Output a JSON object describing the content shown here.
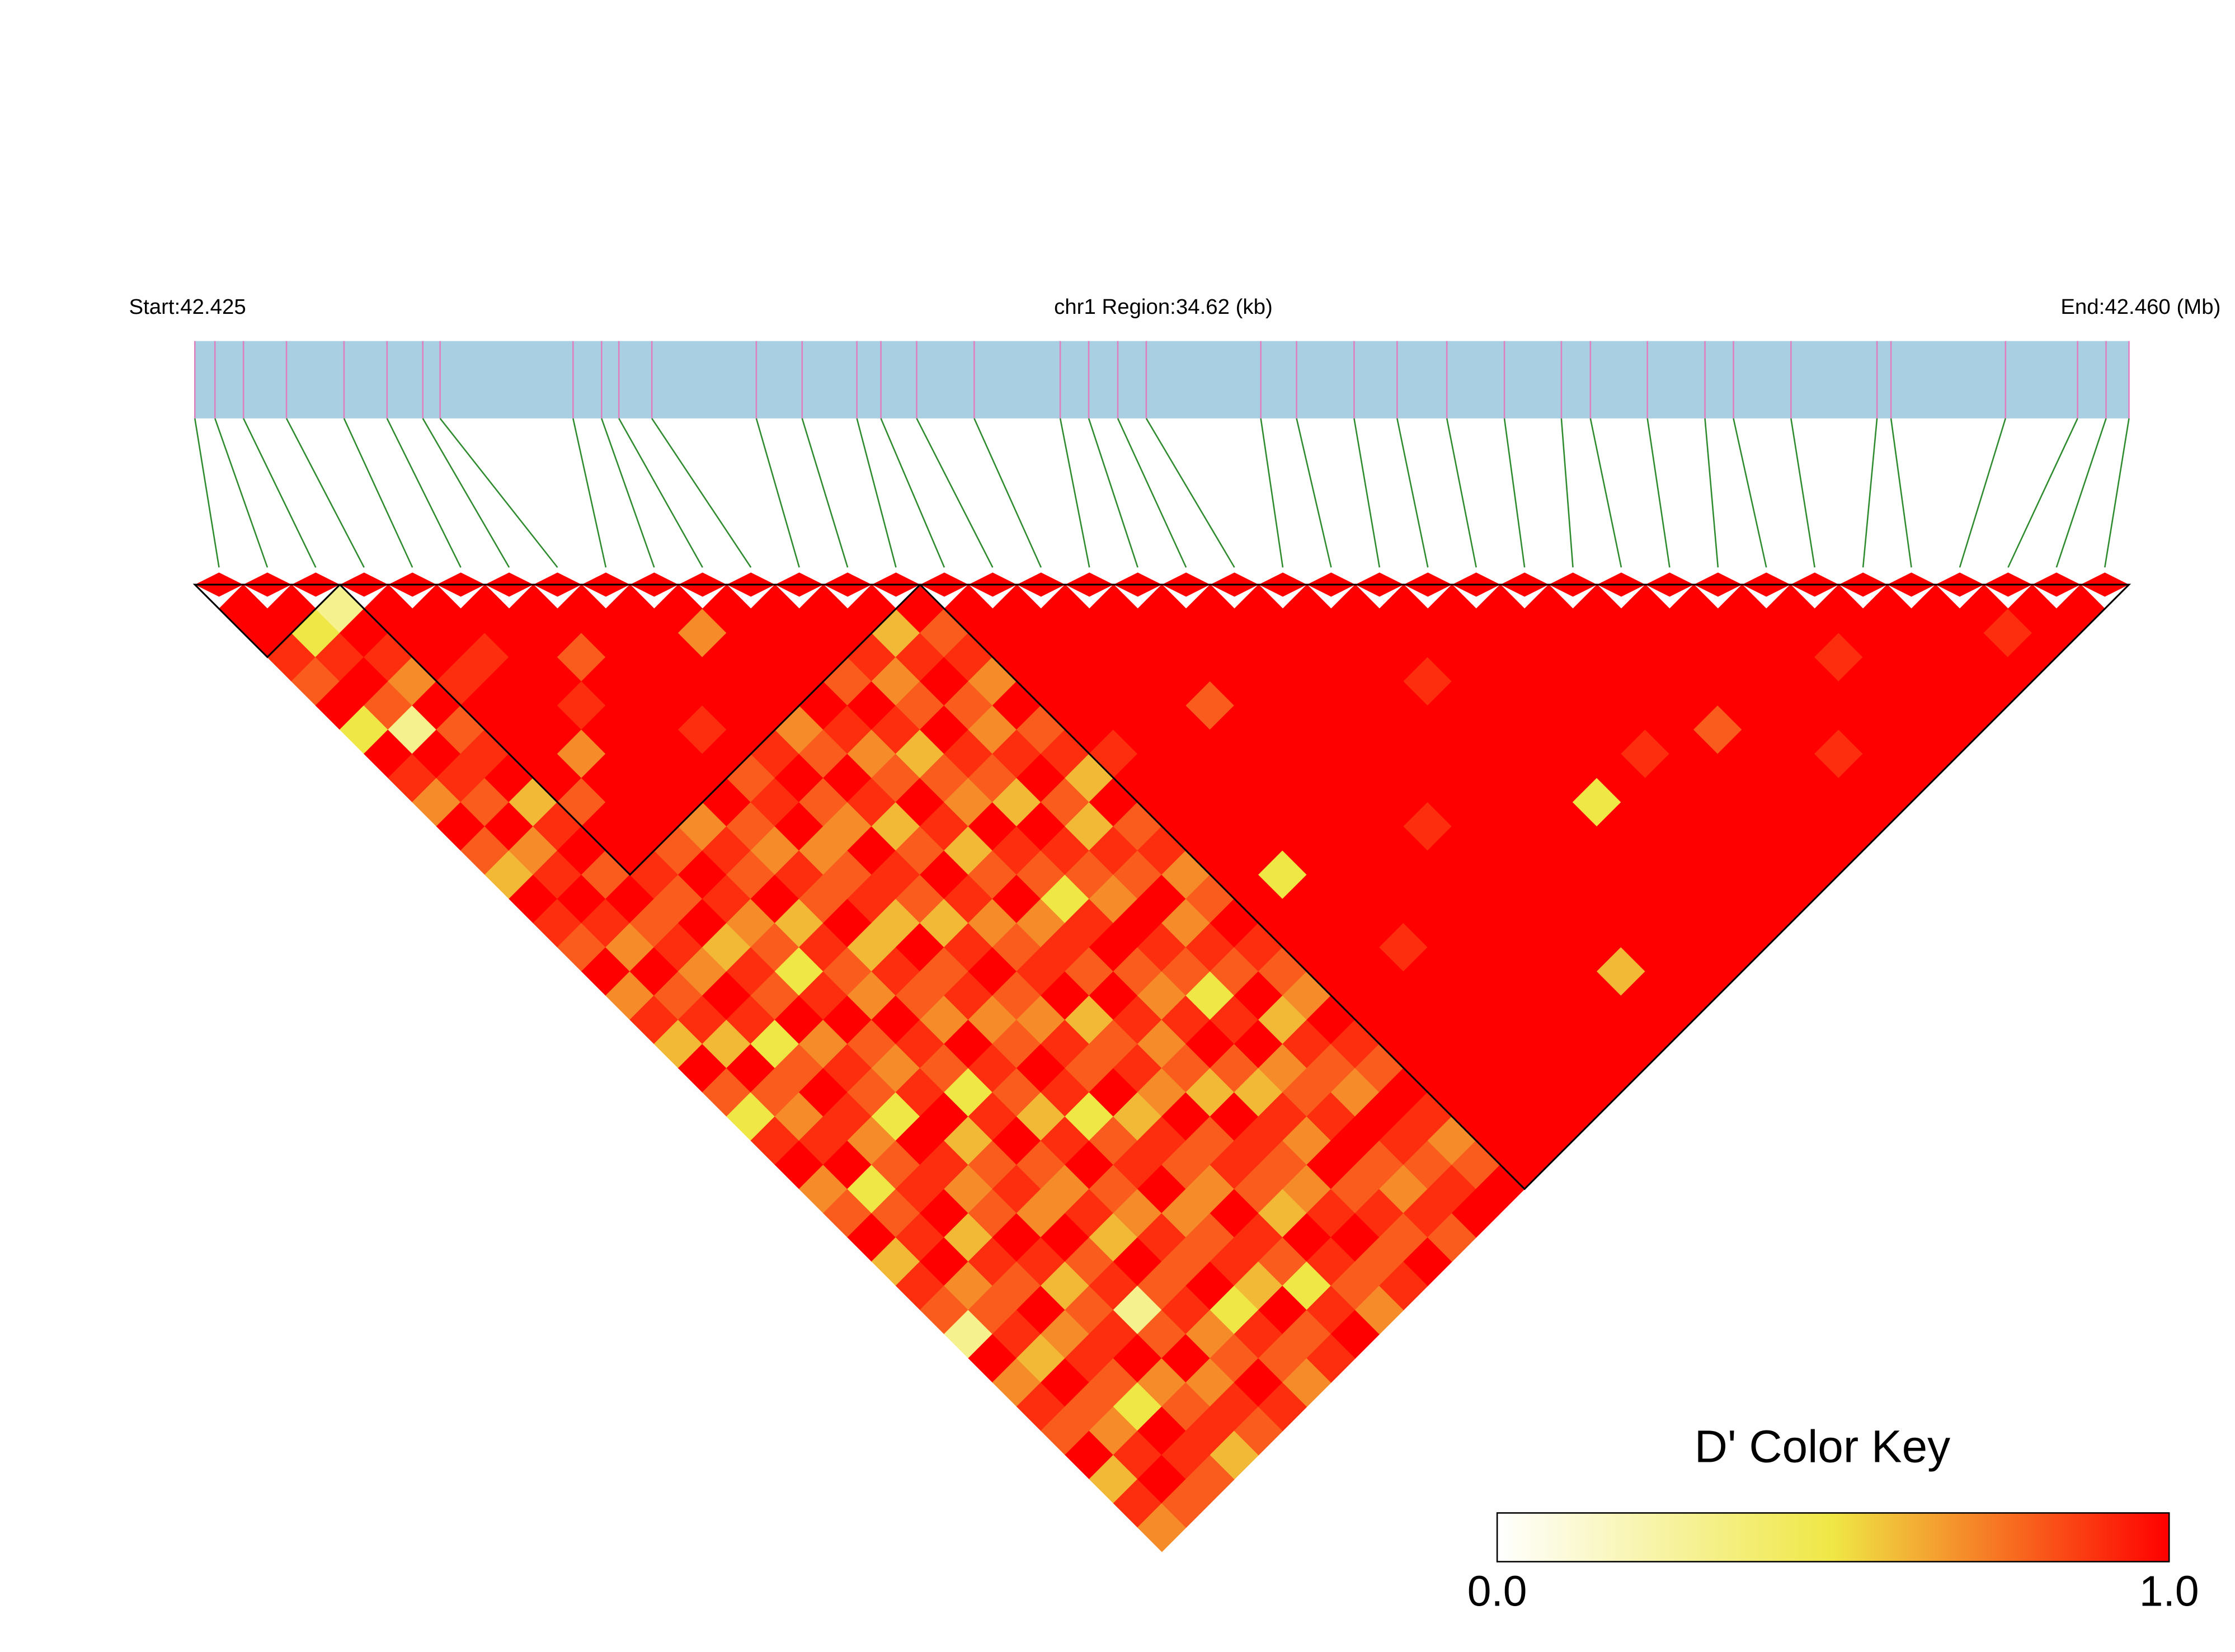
{
  "chart_data": {
    "type": "ldheatmap",
    "start_label": "Start:42.425",
    "region_label": "chr1 Region:34.62 (kb)",
    "end_label": "End:42.460 (Mb)",
    "xlim": [
      0,
      34.62
    ],
    "positions": [
      0,
      0.36,
      0.87,
      1.64,
      2.67,
      3.44,
      4.08,
      4.39,
      6.77,
      7.28,
      7.59,
      8.18,
      10.05,
      10.87,
      11.85,
      12.28,
      12.92,
      13.95,
      15.49,
      16.0,
      16.52,
      17.03,
      19.08,
      19.72,
      20.75,
      21.52,
      22.41,
      23.44,
      24.46,
      24.98,
      26.0,
      27.03,
      27.54,
      28.57,
      30.11,
      30.36,
      32.41,
      33.7,
      34.21,
      34.62
    ],
    "bar_color": "#a8cfe2",
    "marker_color": "#e07fc0",
    "connector_color": "#2e8b2e",
    "blocks": [
      [
        0,
        2
      ],
      [
        3,
        14
      ],
      [
        15,
        39
      ]
    ],
    "dprime": [
      [
        1,
        1,
        0.9,
        0.8,
        1,
        0.5,
        1,
        0.9,
        0.7,
        1,
        0.8,
        0.6,
        1,
        0.9,
        0.8,
        1,
        0.7,
        0.9,
        0.6,
        1,
        0.8,
        0.5,
        0.9,
        1,
        0.7,
        0.8,
        1,
        0.6,
        0.9,
        0.8,
        0.3,
        1,
        0.7,
        0.9,
        0.8,
        1,
        0.6,
        0.9,
        0.7
      ],
      [
        1,
        0.5,
        0.9,
        1,
        0.8,
        0.3,
        1,
        0.9,
        0.8,
        1,
        0.7,
        0.9,
        1,
        0.9,
        0.7,
        1,
        0.8,
        0.9,
        0.6,
        1,
        0.8,
        0.7,
        0.9,
        1,
        0.5,
        0.8,
        0.9,
        1,
        0.7,
        0.8,
        0.9,
        0.6,
        1,
        0.8,
        0.7,
        0.9,
        1,
        0.8
      ],
      [
        0.3,
        1,
        0.9,
        0.7,
        1,
        0.8,
        0.9,
        1,
        0.6,
        0.9,
        1,
        0.8,
        1,
        0.8,
        0.9,
        0.7,
        1,
        0.9,
        0.5,
        0.8,
        1,
        0.9,
        0.7,
        0.8,
        0.9,
        1,
        0.6,
        0.9,
        0.8,
        1,
        0.7,
        0.9,
        0.8,
        0.5,
        1,
        0.9,
        0.8
      ],
      [
        1,
        1,
        1,
        0.9,
        1,
        1,
        1,
        1,
        0.8,
        1,
        1,
        0.9,
        0.8,
        1,
        0.6,
        0.9,
        0.8,
        1,
        0.7,
        0.9,
        0.8,
        0.5,
        1,
        0.9,
        0.7,
        0.8,
        1,
        0.9,
        0.6,
        0.8,
        0.9,
        1,
        0.7,
        0.8,
        0.9,
        0.6
      ],
      [
        1,
        1,
        0.9,
        1,
        1,
        1,
        0.7,
        1,
        1,
        1,
        0.8,
        1,
        0.9,
        0.7,
        0.8,
        0.5,
        0.9,
        1,
        0.8,
        0.7,
        0.9,
        1,
        0.6,
        0.8,
        0.9,
        0.7,
        1,
        0.8,
        0.9,
        0.3,
        0.8,
        1,
        0.7,
        0.9,
        0.8
      ],
      [
        1,
        1,
        1,
        1,
        0.9,
        1,
        1,
        1,
        1,
        0.7,
        0.9,
        0.8,
        1,
        0.6,
        0.9,
        0.8,
        0.7,
        1,
        0.9,
        0.8,
        0.5,
        0.9,
        1,
        0.8,
        0.7,
        0.9,
        0.6,
        1,
        0.8,
        0.9,
        0.7,
        0.8,
        1,
        0.9
      ],
      [
        1,
        1,
        0.8,
        1,
        1,
        1,
        1,
        1,
        1,
        0.8,
        0.7,
        0.9,
        0.8,
        1,
        0.6,
        0.9,
        0.8,
        0.7,
        1,
        0.9,
        0.8,
        0.6,
        0.9,
        1,
        0.8,
        0.7,
        0.9,
        0.8,
        1,
        0.5,
        0.9,
        0.8,
        0.7
      ],
      [
        1,
        1,
        1,
        1,
        1,
        0.9,
        1,
        0.8,
        0.9,
        1,
        0.7,
        0.8,
        0.9,
        0.6,
        1,
        0.8,
        0.9,
        0.7,
        0.8,
        1,
        0.9,
        0.5,
        0.8,
        0.9,
        1,
        0.7,
        0.8,
        0.9,
        0.6,
        1,
        0.8,
        0.9
      ],
      [
        1,
        1,
        1,
        1,
        1,
        1,
        0.9,
        1,
        0.8,
        0.7,
        1,
        0.9,
        0.8,
        0.6,
        0.9,
        1,
        0.8,
        0.7,
        0.9,
        0.8,
        1,
        0.6,
        0.9,
        0.8,
        0.7,
        1,
        0.9,
        0.8,
        0.5,
        0.9,
        1
      ],
      [
        1,
        0.7,
        1,
        1,
        1,
        0.7,
        0.8,
        1,
        0.9,
        0.6,
        0.8,
        1,
        0.9,
        0.7,
        0.8,
        0.9,
        1,
        0.6,
        0.8,
        0.9,
        0.7,
        1,
        0.8,
        0.9,
        0.8,
        0.6,
        1,
        0.9,
        0.8,
        0.7
      ],
      [
        1,
        1,
        1,
        1,
        1,
        0.9,
        0.7,
        0.8,
        1,
        0.9,
        0.6,
        0.8,
        1,
        0.7,
        0.9,
        0.8,
        1,
        0.9,
        0.7,
        0.8,
        0.6,
        1,
        0.9,
        0.8,
        0.7,
        0.9,
        1,
        0.8,
        0.9
      ],
      [
        1,
        1,
        1,
        0.8,
        1,
        0.9,
        0.6,
        0.8,
        0.7,
        1,
        0.9,
        0.8,
        0.5,
        0.9,
        1,
        0.8,
        0.7,
        0.9,
        1,
        0.8,
        0.6,
        0.9,
        0.7,
        1,
        0.8,
        0.9,
        0.8,
        1
      ],
      [
        1,
        1,
        0.9,
        0.7,
        0.8,
        1,
        0.9,
        0.8,
        0.6,
        1,
        0.9,
        0.8,
        0.7,
        1,
        0.9,
        0.8,
        0.5,
        0.9,
        1,
        0.7,
        0.8,
        0.9,
        1,
        0.8,
        0.7,
        0.9,
        0.8
      ],
      [
        1,
        0.6,
        0.9,
        1,
        0.8,
        0.7,
        0.9,
        1,
        0.8,
        0.6,
        0.9,
        0.8,
        1,
        0.7,
        0.9,
        0.8,
        1,
        0.6,
        0.9,
        0.8,
        0.7,
        1,
        0.9,
        0.8,
        0.9,
        1
      ],
      [
        1,
        0.8,
        0.9,
        0.7,
        1,
        0.8,
        0.9,
        0.6,
        1,
        0.8,
        0.9,
        0.7,
        0.8,
        1,
        0.9,
        0.8,
        0.7,
        1,
        0.9,
        0.8,
        1,
        0.9,
        0.7,
        0.8,
        1
      ],
      [
        1,
        1,
        1,
        1,
        1,
        1,
        0.9,
        1,
        1,
        1,
        1,
        1,
        1,
        1,
        1,
        1,
        1,
        1,
        1,
        1,
        1,
        1,
        1,
        1
      ],
      [
        1,
        1,
        1,
        1,
        1,
        1,
        1,
        1,
        1,
        1,
        1,
        0.5,
        1,
        1,
        1,
        1,
        1,
        1,
        1,
        1,
        1,
        1,
        1
      ],
      [
        1,
        1,
        1,
        1,
        1,
        1,
        1,
        1,
        1,
        1,
        1,
        1,
        1,
        1,
        0.9,
        1,
        1,
        1,
        1,
        1,
        1,
        1
      ],
      [
        1,
        1,
        1,
        1,
        0.8,
        1,
        1,
        1,
        1,
        1,
        1,
        1,
        1,
        1,
        1,
        1,
        1,
        1,
        1,
        1,
        1
      ],
      [
        1,
        1,
        1,
        1,
        1,
        1,
        1,
        1,
        1,
        1,
        1,
        1,
        1,
        1,
        1,
        1,
        1,
        1,
        1,
        1
      ],
      [
        1,
        1,
        1,
        1,
        1,
        1,
        1,
        1,
        1,
        0.9,
        1,
        1,
        1,
        1,
        1,
        1,
        1,
        1,
        1
      ],
      [
        1,
        1,
        1,
        1,
        1,
        1,
        1,
        1,
        1,
        1,
        1,
        1,
        1,
        1,
        1,
        0.6,
        1,
        1
      ],
      [
        1,
        1,
        1,
        1,
        1,
        1,
        1,
        1,
        1,
        1,
        1,
        1,
        1,
        1,
        1,
        1,
        1
      ],
      [
        1,
        1,
        1,
        0.9,
        1,
        1,
        1,
        1,
        1,
        1,
        1,
        1,
        1,
        1,
        1,
        1
      ],
      [
        1,
        1,
        1,
        1,
        1,
        1,
        1,
        1,
        0.5,
        1,
        1,
        1,
        1,
        1,
        1
      ],
      [
        1,
        1,
        1,
        1,
        1,
        1,
        1,
        1,
        1,
        1,
        1,
        1,
        1,
        1
      ],
      [
        1,
        1,
        1,
        1,
        1,
        1,
        0.9,
        1,
        1,
        1,
        1,
        1,
        1
      ],
      [
        1,
        1,
        1,
        1,
        1,
        1,
        1,
        1,
        1,
        1,
        1,
        1
      ],
      [
        1,
        1,
        1,
        1,
        1,
        0.8,
        1,
        1,
        1,
        1,
        1
      ],
      [
        1,
        1,
        1,
        1,
        1,
        1,
        1,
        1,
        1,
        1
      ],
      [
        1,
        1,
        1,
        1,
        1,
        1,
        0.9,
        1,
        1
      ],
      [
        1,
        1,
        1,
        1,
        1,
        1,
        1,
        1
      ],
      [
        1,
        1,
        0.9,
        1,
        1,
        1,
        1
      ],
      [
        1,
        1,
        1,
        1,
        1,
        1
      ],
      [
        1,
        1,
        1,
        1,
        1
      ],
      [
        1,
        1,
        1,
        1
      ],
      [
        1,
        0.9,
        1
      ],
      [
        1,
        1
      ],
      [
        1
      ]
    ],
    "color_key": {
      "title": "D' Color Key",
      "lim": [
        0,
        1
      ],
      "ticks": [
        {
          "value": 0,
          "label": "0.0"
        },
        {
          "value": 1,
          "label": "1.0"
        }
      ],
      "colors": [
        "#ffffff",
        "#efe745",
        "#ff0000"
      ]
    }
  }
}
